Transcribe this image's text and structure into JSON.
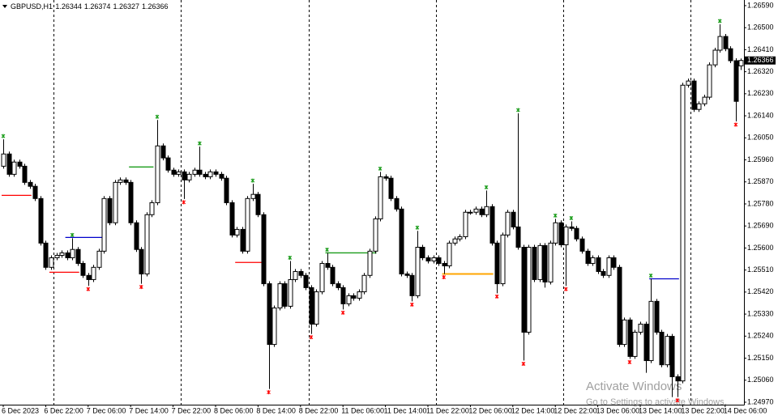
{
  "chart_data": {
    "type": "candlestick",
    "title": "GBPUSD,H1",
    "categories": [
      "6 Dec 2023",
      null,
      null,
      null,
      null,
      null,
      null,
      null,
      "6 Dec 22:00",
      null,
      null,
      null,
      null,
      null,
      null,
      null,
      "7 Dec 06:00",
      null,
      null,
      null,
      null,
      null,
      null,
      null,
      "7 Dec 14:00",
      null,
      null,
      null,
      null,
      null,
      null,
      null,
      "7 Dec 22:00",
      null,
      null,
      null,
      null,
      null,
      null,
      null,
      "8 Dec 06:00",
      null,
      null,
      null,
      null,
      null,
      null,
      null,
      "8 Dec 14:00",
      null,
      null,
      null,
      null,
      null,
      null,
      null,
      "8 Dec 22:00",
      null,
      null,
      null,
      null,
      null,
      null,
      null,
      "11 Dec 06:00",
      null,
      null,
      null,
      null,
      null,
      null,
      null,
      "11 Dec 14:00",
      null,
      null,
      null,
      null,
      null,
      null,
      null,
      "11 Dec 22:00",
      null,
      null,
      null,
      null,
      null,
      null,
      null,
      "12 Dec 06:00",
      null,
      null,
      null,
      null,
      null,
      null,
      null,
      "12 Dec 14:00",
      null,
      null,
      null,
      null,
      null,
      null,
      null,
      "12 Dec 22:00",
      null,
      null,
      null,
      null,
      null,
      null,
      null,
      "13 Dec 06:00",
      null,
      null,
      null,
      null,
      null,
      null,
      null,
      "13 Dec 14:00",
      null,
      null,
      null,
      null,
      null,
      null,
      null,
      "13 Dec 22:00",
      null,
      null,
      null,
      null,
      null,
      null,
      null,
      "14 Dec 06:00",
      null,
      null,
      null
    ],
    "open": [
      1.25934,
      1.25984,
      1.25901,
      1.25951,
      1.25934,
      1.25868,
      1.25852,
      1.25802,
      1.2562,
      1.25521,
      1.2556,
      1.2557,
      1.2558,
      1.2556,
      1.25594,
      1.25537,
      1.25488,
      1.25471,
      1.25521,
      1.25587,
      1.25802,
      1.25703,
      1.25868,
      1.25878,
      1.25868,
      1.25703,
      1.25594,
      1.25494,
      1.25736,
      1.25785,
      1.26017,
      1.25968,
      1.25918,
      1.25901,
      1.25911,
      1.25878,
      1.25901,
      1.25918,
      1.25901,
      1.25891,
      1.25911,
      1.25901,
      1.25885,
      1.25785,
      1.25653,
      1.25676,
      1.25587,
      1.25802,
      1.25819,
      1.25736,
      1.25454,
      1.25206,
      1.25355,
      1.25454,
      1.25362,
      1.25471,
      1.25504,
      1.25488,
      1.25438,
      1.25289,
      1.25421,
      1.25537,
      1.25521,
      1.25454,
      1.25438,
      1.25372,
      1.25405,
      1.25395,
      1.25421,
      1.25488,
      1.25587,
      1.25719,
      1.25891,
      1.25885,
      1.25802,
      1.25759,
      1.25494,
      1.25488,
      1.25405,
      1.25603,
      1.2556,
      1.25547,
      1.2556,
      1.25537,
      1.25527,
      1.2562,
      1.25637,
      1.25646,
      1.25746,
      1.25746,
      1.25759,
      1.25736,
      1.25769,
      1.2562,
      1.25454,
      1.25653,
      1.25746,
      1.25686,
      1.25603,
      1.25256,
      1.25603,
      1.25471,
      1.2561,
      1.25461,
      1.2562,
      1.25703,
      1.25613,
      1.25686,
      1.2568,
      1.25637,
      1.25587,
      1.25537,
      1.2556,
      1.25504,
      1.25488,
      1.2556,
      1.25521,
      1.25206,
      1.25306,
      1.25157,
      1.25256,
      1.25289,
      1.2514,
      1.25382,
      1.25256,
      1.25123,
      1.25239,
      1.25074,
      1.25057,
      1.26265,
      1.26282,
      1.26166,
      1.26189,
      1.26216,
      1.26348,
      1.26408,
      1.26464,
      1.26414,
      1.26365,
      1.26344
    ],
    "high": [
      1.26044,
      1.25994,
      1.25961,
      1.25961,
      1.25944,
      1.25878,
      1.25862,
      1.25812,
      1.2563,
      1.2557,
      1.2558,
      1.2559,
      1.2559,
      1.2564,
      1.25604,
      1.25547,
      1.25498,
      1.25531,
      1.25597,
      1.25812,
      1.25812,
      1.25878,
      1.25888,
      1.25888,
      1.25878,
      1.25713,
      1.25604,
      1.25746,
      1.25795,
      1.26123,
      1.26027,
      1.25978,
      1.25928,
      1.25921,
      1.25921,
      1.25911,
      1.25928,
      1.26014,
      1.25911,
      1.25921,
      1.25921,
      1.25911,
      1.25895,
      1.25795,
      1.25686,
      1.25686,
      1.25812,
      1.25862,
      1.25829,
      1.25746,
      1.25464,
      1.25365,
      1.25464,
      1.25464,
      1.25547,
      1.25514,
      1.25514,
      1.25498,
      1.25448,
      1.25431,
      1.25547,
      1.2558,
      1.25531,
      1.25464,
      1.25448,
      1.25415,
      1.25415,
      1.25431,
      1.25498,
      1.25597,
      1.25729,
      1.25911,
      1.25901,
      1.25895,
      1.25812,
      1.25769,
      1.25504,
      1.25498,
      1.2567,
      1.25613,
      1.2557,
      1.2557,
      1.2557,
      1.25547,
      1.2563,
      1.25647,
      1.25656,
      1.25756,
      1.25756,
      1.25769,
      1.25769,
      1.25835,
      1.25779,
      1.2563,
      1.25663,
      1.25756,
      1.25756,
      1.2615,
      1.25613,
      1.25613,
      1.25613,
      1.2562,
      1.2562,
      1.2563,
      1.25719,
      1.25713,
      1.25696,
      1.25709,
      1.2569,
      1.25647,
      1.25597,
      1.2557,
      1.2557,
      1.25514,
      1.2557,
      1.2557,
      1.25531,
      1.25316,
      1.25316,
      1.25266,
      1.25299,
      1.25299,
      1.25474,
      1.25392,
      1.25266,
      1.25249,
      1.25249,
      1.25084,
      1.26275,
      1.26292,
      1.26292,
      1.26199,
      1.26226,
      1.26358,
      1.26418,
      1.26514,
      1.26474,
      1.26424,
      1.26375,
      1.26374
    ],
    "low": [
      1.25924,
      1.25891,
      1.25891,
      1.25924,
      1.25858,
      1.25842,
      1.25792,
      1.2561,
      1.25511,
      1.25511,
      1.2555,
      1.2556,
      1.2555,
      1.2555,
      1.25527,
      1.25478,
      1.25445,
      1.25461,
      1.25511,
      1.25577,
      1.25693,
      1.25693,
      1.25858,
      1.25858,
      1.25693,
      1.25584,
      1.25454,
      1.25484,
      1.25726,
      1.25775,
      1.25958,
      1.25908,
      1.25891,
      1.25891,
      1.258,
      1.25868,
      1.25891,
      1.25891,
      1.25881,
      1.25881,
      1.25891,
      1.25875,
      1.25775,
      1.25643,
      1.25643,
      1.25577,
      1.25577,
      1.25792,
      1.25726,
      1.25444,
      1.25024,
      1.25196,
      1.25345,
      1.25352,
      1.25352,
      1.25461,
      1.25478,
      1.25428,
      1.25249,
      1.25279,
      1.25411,
      1.25511,
      1.25444,
      1.25428,
      1.25349,
      1.25362,
      1.25385,
      1.25385,
      1.25411,
      1.25478,
      1.25577,
      1.25709,
      1.25875,
      1.25792,
      1.25749,
      1.25484,
      1.25478,
      1.25382,
      1.25395,
      1.2555,
      1.25537,
      1.25537,
      1.25527,
      1.25494,
      1.25517,
      1.2561,
      1.25627,
      1.25636,
      1.25736,
      1.25736,
      1.25726,
      1.25726,
      1.2561,
      1.25415,
      1.25444,
      1.25643,
      1.25676,
      1.25593,
      1.2514,
      1.25246,
      1.25461,
      1.25461,
      1.25438,
      1.25451,
      1.2561,
      1.25603,
      1.25445,
      1.2567,
      1.25627,
      1.25577,
      1.25527,
      1.25527,
      1.25494,
      1.25478,
      1.25478,
      1.25511,
      1.25196,
      1.25196,
      1.25147,
      1.25147,
      1.25246,
      1.2509,
      1.2513,
      1.25246,
      1.25113,
      1.25113,
      1.24991,
      1.24991,
      1.25047,
      1.26255,
      1.26156,
      1.26156,
      1.26179,
      1.26206,
      1.26338,
      1.26398,
      1.26404,
      1.26355,
      1.26117,
      1.26327
    ],
    "close": [
      1.25984,
      1.25901,
      1.25951,
      1.25934,
      1.25868,
      1.25852,
      1.25802,
      1.2562,
      1.25521,
      1.2556,
      1.2557,
      1.2558,
      1.2556,
      1.25594,
      1.25537,
      1.25488,
      1.25471,
      1.25521,
      1.25587,
      1.25802,
      1.25703,
      1.25868,
      1.25878,
      1.25868,
      1.25703,
      1.25594,
      1.25494,
      1.25736,
      1.25785,
      1.26017,
      1.25968,
      1.25918,
      1.25901,
      1.25911,
      1.25878,
      1.25901,
      1.25918,
      1.25901,
      1.25891,
      1.25911,
      1.25901,
      1.25885,
      1.25785,
      1.25653,
      1.25676,
      1.25587,
      1.25802,
      1.25819,
      1.25736,
      1.25454,
      1.25206,
      1.25355,
      1.25454,
      1.25362,
      1.25471,
      1.25504,
      1.25488,
      1.25438,
      1.25289,
      1.25421,
      1.25537,
      1.25521,
      1.25454,
      1.25438,
      1.25372,
      1.25405,
      1.25395,
      1.25421,
      1.25488,
      1.25587,
      1.25719,
      1.25891,
      1.25885,
      1.25802,
      1.25759,
      1.25494,
      1.25488,
      1.25405,
      1.25603,
      1.2556,
      1.25547,
      1.2556,
      1.25537,
      1.25527,
      1.2562,
      1.25637,
      1.25646,
      1.25746,
      1.25746,
      1.25759,
      1.25736,
      1.25769,
      1.2562,
      1.25454,
      1.25653,
      1.25746,
      1.25686,
      1.25603,
      1.25256,
      1.25603,
      1.25471,
      1.2561,
      1.25461,
      1.2562,
      1.25703,
      1.25613,
      1.25686,
      1.2568,
      1.25637,
      1.25587,
      1.25537,
      1.2556,
      1.25504,
      1.25488,
      1.2556,
      1.25521,
      1.25206,
      1.25306,
      1.25157,
      1.25256,
      1.25289,
      1.2514,
      1.25382,
      1.25256,
      1.25123,
      1.25239,
      1.25074,
      1.25057,
      1.26265,
      1.26282,
      1.26166,
      1.26189,
      1.26216,
      1.26348,
      1.26408,
      1.26464,
      1.26414,
      1.26365,
      1.26199,
      1.26366
    ],
    "up_color": "#ffffff",
    "down_color": "#000000",
    "high_marks": [
      0,
      13,
      29,
      37,
      47,
      54,
      61,
      71,
      78,
      91,
      97,
      104,
      107,
      122,
      135
    ],
    "low_marks": [
      16,
      26,
      34,
      50,
      58,
      64,
      77,
      83,
      93,
      98,
      106,
      118,
      127,
      138
    ],
    "levels": [
      {
        "color": "#ff0000",
        "value": 1.25815,
        "bars": [
          0,
          5
        ]
      },
      {
        "color": "#ff0000",
        "value": 1.25501,
        "bars": [
          9,
          14
        ]
      },
      {
        "color": "#0000cc",
        "value": 1.25643,
        "bars": [
          12,
          19
        ]
      },
      {
        "color": "#1a9c1a",
        "value": 1.25931,
        "bars": [
          24,
          28
        ]
      },
      {
        "color": "#ff0000",
        "value": 1.25541,
        "bars": [
          44,
          49
        ]
      },
      {
        "color": "#1a9c1a",
        "value": 1.2558,
        "bars": [
          61,
          70
        ]
      },
      {
        "color": "#ffa500",
        "value": 1.25494,
        "bars": [
          83,
          92
        ]
      },
      {
        "color": "#0000cc",
        "value": 1.25474,
        "bars": [
          122,
          127
        ]
      }
    ],
    "separators": [
      10,
      34,
      58,
      82,
      106,
      130
    ],
    "ylim": [
      1.2496,
      1.26613
    ],
    "yticks": [
      {
        "value": 1.2659,
        "label": "1.26590"
      },
      {
        "value": 1.265,
        "label": "1.26500"
      },
      {
        "value": 1.2641,
        "label": "1.26410"
      },
      {
        "value": 1.2632,
        "label": "1.26320"
      },
      {
        "value": 1.2623,
        "label": "1.26230"
      },
      {
        "value": 1.2614,
        "label": "1.26140"
      },
      {
        "value": 1.2605,
        "label": "1.26050"
      },
      {
        "value": 1.2596,
        "label": "1.25960"
      },
      {
        "value": 1.2587,
        "label": "1.25870"
      },
      {
        "value": 1.2578,
        "label": "1.25780"
      },
      {
        "value": 1.2569,
        "label": "1.25690"
      },
      {
        "value": 1.256,
        "label": "1.25600"
      },
      {
        "value": 1.2551,
        "label": "1.25510"
      },
      {
        "value": 1.2542,
        "label": "1.25420"
      },
      {
        "value": 1.2533,
        "label": "1.25330"
      },
      {
        "value": 1.2524,
        "label": "1.25240"
      },
      {
        "value": 1.2515,
        "label": "1.25150"
      },
      {
        "value": 1.2506,
        "label": "1.25060"
      },
      {
        "value": 1.2497,
        "label": "1.24970"
      }
    ]
  },
  "watermark": {
    "title": "Activate Windows",
    "subtitle": "Go to Settings to activate Windows."
  }
}
